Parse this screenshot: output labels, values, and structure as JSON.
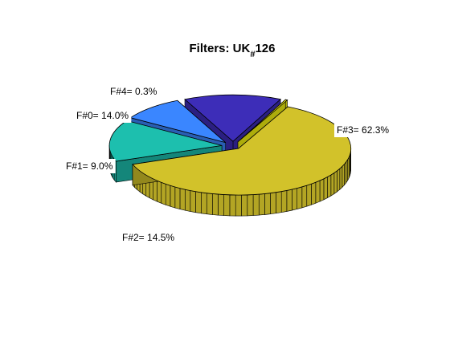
{
  "chart_data": {
    "type": "pie",
    "style": "3d-exploded",
    "title": {
      "prefix": "Filters:  UK",
      "subscript": "#",
      "suffix": "126"
    },
    "slices": [
      {
        "name": "F#0",
        "value": 14.0,
        "label": "F#0= 14.0%",
        "color": "#3d2db8"
      },
      {
        "name": "F#1",
        "value": 9.0,
        "label": "F#1= 9.0%",
        "color": "#3a86ff"
      },
      {
        "name": "F#2",
        "value": 14.5,
        "label": "F#2= 14.5%",
        "color": "#1dbfae"
      },
      {
        "name": "F#3",
        "value": 62.3,
        "label": "F#3= 62.3%",
        "color": "#d2c22a"
      },
      {
        "name": "F#4",
        "value": 0.3,
        "label": "F#4= 0.3%",
        "color": "#f7f50f"
      }
    ],
    "legend": "none",
    "grid": false
  }
}
